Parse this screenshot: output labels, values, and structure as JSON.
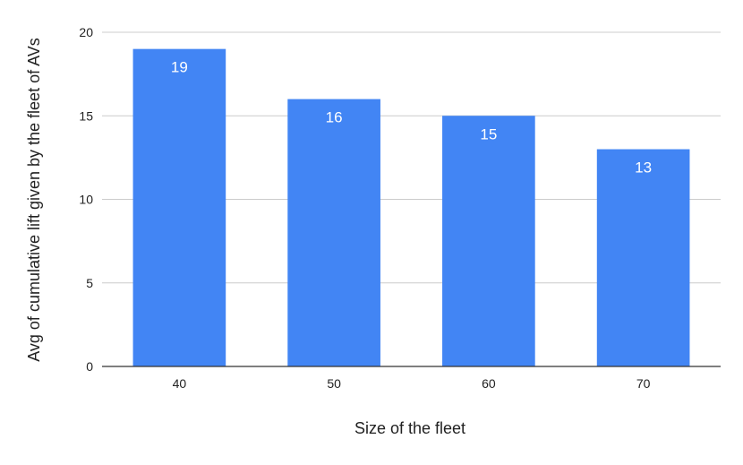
{
  "chart_data": {
    "type": "bar",
    "title": "",
    "xlabel": "Size of the fleet",
    "ylabel": "Avg of cumulative lift given by the fleet of AVs",
    "categories": [
      "40",
      "50",
      "60",
      "70"
    ],
    "values": [
      19,
      16,
      15,
      13
    ],
    "data_labels": [
      "19",
      "16",
      "15",
      "13"
    ],
    "ylim": [
      0,
      20
    ],
    "yticks": [
      0,
      5,
      10,
      15,
      20
    ],
    "ytick_labels": [
      "0",
      "5",
      "10",
      "15",
      "20"
    ],
    "grid": true,
    "legend": "none",
    "colors": {
      "bar": "#4285f4",
      "grid": "#cccccc",
      "axis": "#333333",
      "data_label": "#ffffff"
    }
  }
}
